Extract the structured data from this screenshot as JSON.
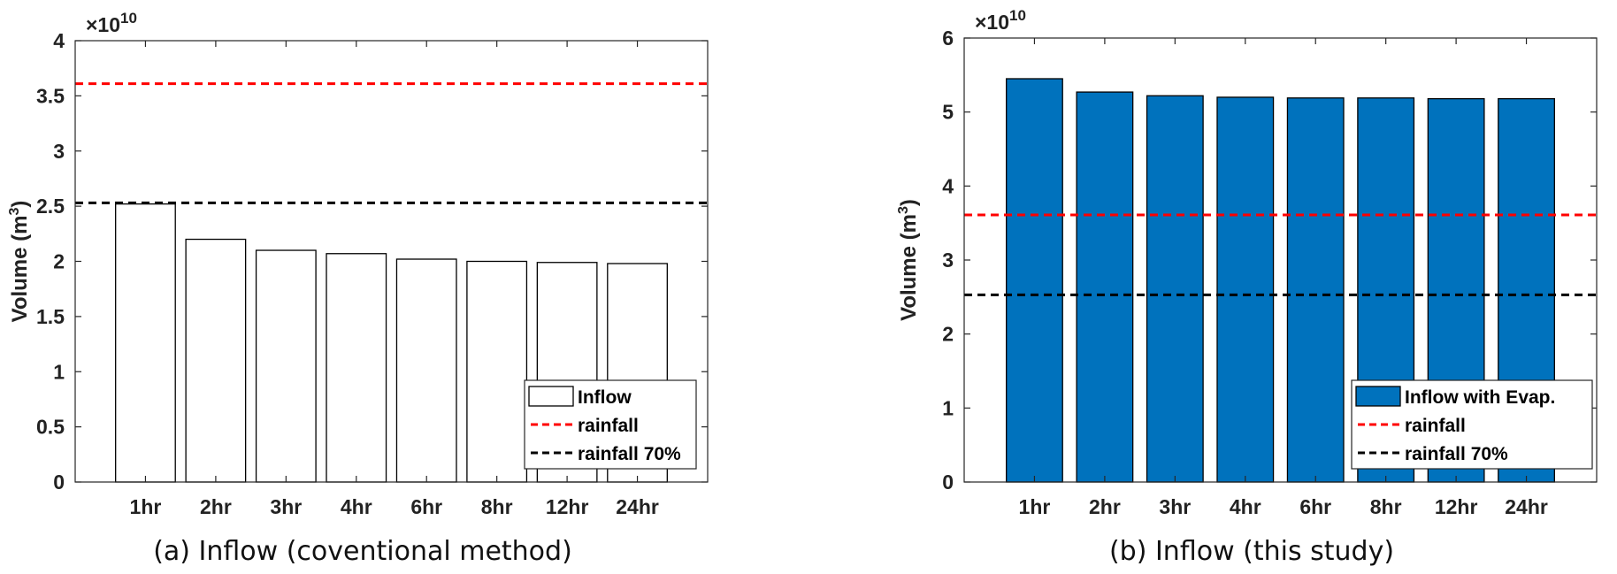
{
  "chart_data": [
    {
      "type": "bar",
      "categories": [
        "1hr",
        "2hr",
        "3hr",
        "4hr",
        "6hr",
        "8hr",
        "12hr",
        "24hr"
      ],
      "series": [
        {
          "name": "Inflow",
          "values": [
            2.52,
            2.2,
            2.1,
            2.07,
            2.02,
            2.0,
            1.99,
            1.98
          ],
          "color": "#ffffff"
        }
      ],
      "reference_lines": [
        {
          "name": "rainfall",
          "value": 3.61,
          "color": "#ff0000",
          "style": "dashed"
        },
        {
          "name": "rainfall 70%",
          "value": 2.53,
          "color": "#000000",
          "style": "dashed"
        }
      ],
      "ylabel": "Volume (m",
      "ylabel_superscript": "3",
      "ylabel_close": ")",
      "y_multiplier_base": "×10",
      "y_multiplier_exp": "10",
      "ylim": [
        0,
        4
      ],
      "yticks": [
        "0",
        "0.5",
        "1",
        "1.5",
        "2",
        "2.5",
        "3",
        "3.5",
        "4"
      ],
      "grid": false,
      "legend_position": "bottom-right",
      "caption": "(a) Inflow (coventional method)"
    },
    {
      "type": "bar",
      "categories": [
        "1hr",
        "2hr",
        "3hr",
        "4hr",
        "6hr",
        "8hr",
        "12hr",
        "24hr"
      ],
      "series": [
        {
          "name": "Inflow with Evap.",
          "values": [
            5.45,
            5.27,
            5.22,
            5.2,
            5.19,
            5.19,
            5.18,
            5.18
          ],
          "color": "#0072bd"
        }
      ],
      "reference_lines": [
        {
          "name": "rainfall",
          "value": 3.61,
          "color": "#ff0000",
          "style": "dashed"
        },
        {
          "name": "rainfall 70%",
          "value": 2.53,
          "color": "#000000",
          "style": "dashed"
        }
      ],
      "ylabel": "Volume (m",
      "ylabel_superscript": "3",
      "ylabel_close": ")",
      "y_multiplier_base": "×10",
      "y_multiplier_exp": "10",
      "ylim": [
        0,
        6
      ],
      "yticks": [
        "0",
        "1",
        "2",
        "3",
        "4",
        "5",
        "6"
      ],
      "grid": false,
      "legend_position": "bottom-right",
      "caption": "(b) Inflow (this study)"
    }
  ]
}
